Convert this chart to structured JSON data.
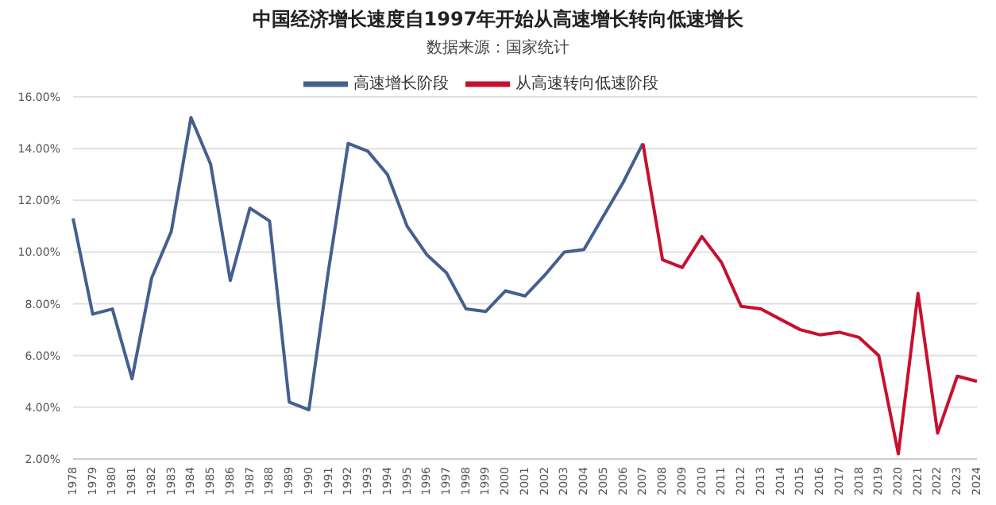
{
  "chart_data": {
    "type": "line",
    "title": "中国经济增长速度自1997年开始从高速增长转向低速增长",
    "subtitle": "数据来源：国家统计",
    "categories": [
      "1978",
      "1979",
      "1980",
      "1981",
      "1982",
      "1983",
      "1984",
      "1985",
      "1986",
      "1987",
      "1988",
      "1989",
      "1990",
      "1991",
      "1992",
      "1993",
      "1994",
      "1995",
      "1996",
      "1997",
      "1998",
      "1999",
      "2000",
      "2001",
      "2002",
      "2003",
      "2004",
      "2005",
      "2006",
      "2007",
      "2008",
      "2009",
      "2010",
      "2011",
      "2012",
      "2013",
      "2014",
      "2015",
      "2016",
      "2017",
      "2018",
      "2019",
      "2020",
      "2021",
      "2022",
      "2023",
      "2024"
    ],
    "series": [
      {
        "name": "高速增长阶段",
        "color": "#44608f",
        "values": [
          11.3,
          7.6,
          7.8,
          5.1,
          9.0,
          10.8,
          15.2,
          13.4,
          8.9,
          11.7,
          11.2,
          4.2,
          3.9,
          9.3,
          14.2,
          13.9,
          13.0,
          11.0,
          9.9,
          9.2,
          7.8,
          7.7,
          8.5,
          8.3,
          9.1,
          10.0,
          10.1,
          11.4,
          12.7,
          14.2,
          null,
          null,
          null,
          null,
          null,
          null,
          null,
          null,
          null,
          null,
          null,
          null,
          null,
          null,
          null,
          null,
          null
        ]
      },
      {
        "name": "从高速转向低速阶段",
        "color": "#c8102e",
        "values": [
          null,
          null,
          null,
          null,
          null,
          null,
          null,
          null,
          null,
          null,
          null,
          null,
          null,
          null,
          null,
          null,
          null,
          null,
          null,
          null,
          null,
          null,
          null,
          null,
          null,
          null,
          null,
          null,
          null,
          14.2,
          9.7,
          9.4,
          10.6,
          9.6,
          7.9,
          7.8,
          7.4,
          7.0,
          6.8,
          6.9,
          6.7,
          6.0,
          2.2,
          8.4,
          3.0,
          5.2,
          5.0
        ]
      }
    ],
    "ylim": [
      2,
      16
    ],
    "yticks": [
      {
        "value": 2,
        "label": "2.00%"
      },
      {
        "value": 4,
        "label": "4.00%"
      },
      {
        "value": 6,
        "label": "6.00%"
      },
      {
        "value": 8,
        "label": "8.00%"
      },
      {
        "value": 10,
        "label": "10.00%"
      },
      {
        "value": 12,
        "label": "12.00%"
      },
      {
        "value": 14,
        "label": "14.00%"
      },
      {
        "value": 16,
        "label": "16.00%"
      }
    ],
    "grid": "y",
    "legend": "top",
    "marker": "none",
    "line_style": "solid"
  }
}
